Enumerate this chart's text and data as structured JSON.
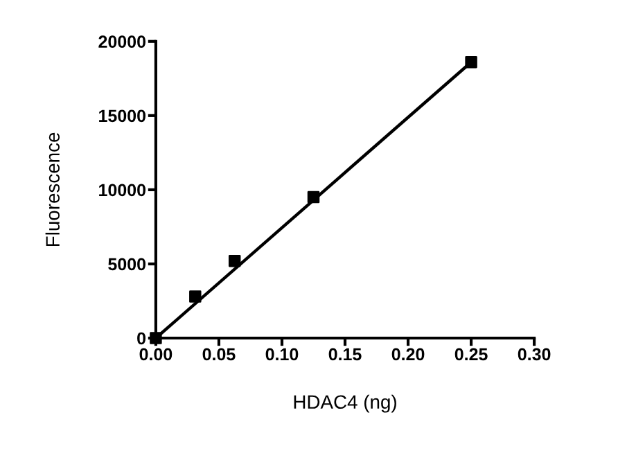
{
  "chart_data": {
    "type": "scatter",
    "xlabel": "HDAC4 (ng)",
    "ylabel": "Fluorescence",
    "xlim": [
      0,
      0.3
    ],
    "xticks": [
      {
        "value": 0,
        "label": "0.00"
      },
      {
        "value": 0.05,
        "label": "0.05"
      },
      {
        "value": 0.1,
        "label": "0.10"
      },
      {
        "value": 0.15,
        "label": "0.15"
      },
      {
        "value": 0.2,
        "label": "0.20"
      },
      {
        "value": 0.25,
        "label": "0.25"
      },
      {
        "value": 0.3,
        "label": "0.30"
      }
    ],
    "ylim": [
      0,
      20000
    ],
    "yticks": [
      0,
      5000,
      10000,
      15000,
      20000
    ],
    "series": [
      {
        "color": "#000000",
        "marker": "square",
        "x": [
          0,
          0.03125,
          0.0625,
          0.125,
          0.25
        ],
        "values": [
          0,
          2800,
          5200,
          9500,
          18600
        ]
      },
      {
        "type": "line",
        "color": "#000000",
        "marker": "none",
        "line_style": "solid",
        "x": [
          0,
          0.25
        ],
        "values": [
          0,
          18600
        ]
      }
    ],
    "grid": false,
    "legend": false
  }
}
